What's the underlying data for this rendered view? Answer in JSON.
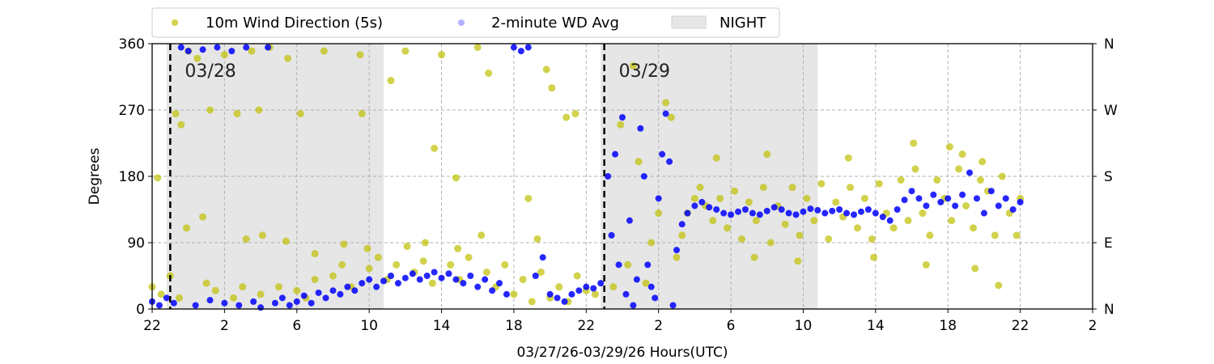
{
  "chart_data": {
    "type": "scatter",
    "xlabel": "03/27/26-03/29/26  Hours(UTC)",
    "ylabel": "Degrees",
    "x_range_hours": [
      22,
      74
    ],
    "ylim": [
      0,
      360
    ],
    "x_ticks": [
      {
        "hour": 22,
        "label": "22"
      },
      {
        "hour": 26,
        "label": "2"
      },
      {
        "hour": 30,
        "label": "6"
      },
      {
        "hour": 34,
        "label": "10"
      },
      {
        "hour": 38,
        "label": "14"
      },
      {
        "hour": 42,
        "label": "18"
      },
      {
        "hour": 46,
        "label": "22"
      },
      {
        "hour": 50,
        "label": "2"
      },
      {
        "hour": 54,
        "label": "6"
      },
      {
        "hour": 58,
        "label": "10"
      },
      {
        "hour": 62,
        "label": "14"
      },
      {
        "hour": 66,
        "label": "18"
      },
      {
        "hour": 70,
        "label": "22"
      },
      {
        "hour": 74,
        "label": "2"
      }
    ],
    "y_ticks": [
      0,
      90,
      180,
      270,
      360
    ],
    "y_ticks_right": [
      {
        "value": 0,
        "label": "N"
      },
      {
        "value": 90,
        "label": "E"
      },
      {
        "value": 180,
        "label": "S"
      },
      {
        "value": 270,
        "label": "W"
      },
      {
        "value": 360,
        "label": "N"
      }
    ],
    "grid": true,
    "legend": {
      "placement": "top-left-outside",
      "entries": [
        {
          "label": "10m Wind Direction (5s)",
          "kind": "point",
          "color": "#bfbf00"
        },
        {
          "label": "2-minute WD Avg",
          "kind": "point",
          "color": "#0000ff"
        },
        {
          "label": "NIGHT",
          "kind": "patch",
          "color": "#e6e6e6"
        }
      ]
    },
    "night_spans": [
      {
        "start": 22.8,
        "end": 34.8
      },
      {
        "start": 46.8,
        "end": 58.8
      }
    ],
    "day_markers": [
      {
        "hour": 23.0,
        "label": "03/28"
      },
      {
        "hour": 47.0,
        "label": "03/29"
      }
    ],
    "series": [
      {
        "name": "10m Wind Direction (5s)",
        "color": "#bfbf00",
        "points": [
          [
            22.0,
            30
          ],
          [
            22.5,
            20
          ],
          [
            23.0,
            45
          ],
          [
            23.5,
            15
          ],
          [
            24.0,
            350
          ],
          [
            24.5,
            340
          ],
          [
            25.0,
            35
          ],
          [
            25.5,
            25
          ],
          [
            26.0,
            345
          ],
          [
            26.5,
            15
          ],
          [
            27.0,
            30
          ],
          [
            27.5,
            350
          ],
          [
            28.0,
            20
          ],
          [
            28.5,
            355
          ],
          [
            29.0,
            30
          ],
          [
            29.5,
            340
          ],
          [
            30.0,
            25
          ],
          [
            30.5,
            15
          ],
          [
            31.0,
            40
          ],
          [
            31.5,
            350
          ],
          [
            32.0,
            45
          ],
          [
            32.5,
            60
          ],
          [
            33.0,
            30
          ],
          [
            33.5,
            345
          ],
          [
            34.0,
            55
          ],
          [
            34.5,
            70
          ],
          [
            35.0,
            40
          ],
          [
            35.5,
            60
          ],
          [
            36.0,
            350
          ],
          [
            36.5,
            50
          ],
          [
            37.0,
            65
          ],
          [
            37.5,
            35
          ],
          [
            38.0,
            345
          ],
          [
            38.5,
            60
          ],
          [
            39.0,
            40
          ],
          [
            39.5,
            70
          ],
          [
            40.0,
            355
          ],
          [
            40.5,
            50
          ],
          [
            41.0,
            30
          ],
          [
            41.5,
            60
          ],
          [
            42.0,
            20
          ],
          [
            42.5,
            40
          ],
          [
            43.0,
            10
          ],
          [
            43.5,
            50
          ],
          [
            44.0,
            15
          ],
          [
            44.5,
            30
          ],
          [
            45.0,
            10
          ],
          [
            45.5,
            45
          ],
          [
            46.0,
            25
          ],
          [
            46.5,
            20
          ],
          [
            23.3,
            265
          ],
          [
            23.6,
            250
          ],
          [
            25.2,
            270
          ],
          [
            26.7,
            265
          ],
          [
            27.9,
            270
          ],
          [
            30.2,
            265
          ],
          [
            33.6,
            265
          ],
          [
            37.6,
            218
          ],
          [
            38.8,
            178
          ],
          [
            35.2,
            310
          ],
          [
            40.6,
            320
          ],
          [
            43.8,
            325
          ],
          [
            44.9,
            260
          ],
          [
            45.4,
            265
          ],
          [
            44.1,
            300
          ],
          [
            22.3,
            178
          ],
          [
            23.9,
            110
          ],
          [
            24.8,
            125
          ],
          [
            27.2,
            95
          ],
          [
            28.1,
            100
          ],
          [
            29.4,
            92
          ],
          [
            31.0,
            75
          ],
          [
            32.6,
            88
          ],
          [
            33.9,
            82
          ],
          [
            36.1,
            85
          ],
          [
            37.1,
            90
          ],
          [
            38.9,
            82
          ],
          [
            40.2,
            100
          ],
          [
            42.8,
            150
          ],
          [
            43.3,
            95
          ],
          [
            47.5,
            30
          ],
          [
            47.9,
            250
          ],
          [
            48.3,
            60
          ],
          [
            48.6,
            330
          ],
          [
            48.9,
            200
          ],
          [
            49.3,
            35
          ],
          [
            49.6,
            90
          ],
          [
            50.0,
            130
          ],
          [
            50.4,
            280
          ],
          [
            50.7,
            260
          ],
          [
            51.0,
            70
          ],
          [
            51.3,
            100
          ],
          [
            51.6,
            130
          ],
          [
            52.0,
            150
          ],
          [
            52.3,
            165
          ],
          [
            52.6,
            140
          ],
          [
            53.0,
            120
          ],
          [
            53.4,
            150
          ],
          [
            53.8,
            110
          ],
          [
            54.2,
            160
          ],
          [
            54.6,
            95
          ],
          [
            55.0,
            145
          ],
          [
            55.4,
            120
          ],
          [
            55.8,
            165
          ],
          [
            56.2,
            90
          ],
          [
            56.6,
            140
          ],
          [
            57.0,
            115
          ],
          [
            57.4,
            165
          ],
          [
            57.8,
            100
          ],
          [
            58.2,
            150
          ],
          [
            58.6,
            120
          ],
          [
            59.0,
            170
          ],
          [
            59.4,
            95
          ],
          [
            59.8,
            145
          ],
          [
            60.2,
            125
          ],
          [
            60.6,
            165
          ],
          [
            61.0,
            110
          ],
          [
            61.4,
            150
          ],
          [
            61.8,
            95
          ],
          [
            62.2,
            170
          ],
          [
            62.6,
            130
          ],
          [
            63.0,
            110
          ],
          [
            63.4,
            175
          ],
          [
            63.8,
            120
          ],
          [
            64.2,
            190
          ],
          [
            64.6,
            130
          ],
          [
            65.0,
            100
          ],
          [
            65.4,
            175
          ],
          [
            65.8,
            150
          ],
          [
            66.2,
            120
          ],
          [
            66.6,
            190
          ],
          [
            67.0,
            140
          ],
          [
            67.4,
            110
          ],
          [
            67.8,
            175
          ],
          [
            68.2,
            160
          ],
          [
            68.6,
            100
          ],
          [
            69.0,
            180
          ],
          [
            69.4,
            130
          ],
          [
            69.8,
            100
          ],
          [
            70.0,
            150
          ],
          [
            55.3,
            70
          ],
          [
            57.7,
            65
          ],
          [
            60.5,
            205
          ],
          [
            61.9,
            70
          ],
          [
            64.8,
            60
          ],
          [
            66.8,
            210
          ],
          [
            67.5,
            55
          ],
          [
            68.8,
            32
          ],
          [
            53.2,
            205
          ],
          [
            56.0,
            210
          ],
          [
            64.1,
            225
          ],
          [
            66.1,
            220
          ],
          [
            67.9,
            200
          ]
        ]
      },
      {
        "name": "2-minute WD Avg",
        "color": "#0000ff",
        "points": [
          [
            22.0,
            10
          ],
          [
            22.4,
            5
          ],
          [
            22.8,
            15
          ],
          [
            23.2,
            8
          ],
          [
            23.6,
            355
          ],
          [
            24.0,
            350
          ],
          [
            24.4,
            5
          ],
          [
            24.8,
            352
          ],
          [
            25.2,
            12
          ],
          [
            25.6,
            355
          ],
          [
            26.0,
            8
          ],
          [
            26.4,
            350
          ],
          [
            26.8,
            5
          ],
          [
            27.2,
            355
          ],
          [
            27.6,
            10
          ],
          [
            28.0,
            2
          ],
          [
            28.4,
            355
          ],
          [
            28.8,
            8
          ],
          [
            29.2,
            15
          ],
          [
            29.6,
            5
          ],
          [
            30.0,
            10
          ],
          [
            30.4,
            18
          ],
          [
            30.8,
            8
          ],
          [
            31.2,
            22
          ],
          [
            31.6,
            15
          ],
          [
            32.0,
            25
          ],
          [
            32.4,
            20
          ],
          [
            32.8,
            30
          ],
          [
            33.2,
            25
          ],
          [
            33.6,
            35
          ],
          [
            34.0,
            40
          ],
          [
            34.4,
            30
          ],
          [
            34.8,
            38
          ],
          [
            35.2,
            45
          ],
          [
            35.6,
            35
          ],
          [
            36.0,
            42
          ],
          [
            36.4,
            48
          ],
          [
            36.8,
            40
          ],
          [
            37.2,
            45
          ],
          [
            37.6,
            50
          ],
          [
            38.0,
            42
          ],
          [
            38.4,
            48
          ],
          [
            38.8,
            40
          ],
          [
            39.2,
            35
          ],
          [
            39.6,
            45
          ],
          [
            40.0,
            30
          ],
          [
            40.4,
            40
          ],
          [
            40.8,
            25
          ],
          [
            41.2,
            35
          ],
          [
            41.6,
            20
          ],
          [
            42.0,
            355
          ],
          [
            42.4,
            350
          ],
          [
            42.8,
            355
          ],
          [
            43.2,
            45
          ],
          [
            43.6,
            70
          ],
          [
            44.0,
            20
          ],
          [
            44.4,
            15
          ],
          [
            44.8,
            10
          ],
          [
            45.2,
            20
          ],
          [
            45.6,
            25
          ],
          [
            46.0,
            30
          ],
          [
            46.4,
            28
          ],
          [
            46.8,
            35
          ],
          [
            47.2,
            180
          ],
          [
            47.4,
            100
          ],
          [
            47.6,
            210
          ],
          [
            47.8,
            60
          ],
          [
            48.0,
            260
          ],
          [
            48.2,
            20
          ],
          [
            48.4,
            120
          ],
          [
            48.6,
            5
          ],
          [
            48.8,
            40
          ],
          [
            49.0,
            245
          ],
          [
            49.2,
            180
          ],
          [
            49.4,
            60
          ],
          [
            49.6,
            30
          ],
          [
            49.8,
            15
          ],
          [
            50.0,
            150
          ],
          [
            50.2,
            210
          ],
          [
            50.4,
            265
          ],
          [
            50.6,
            200
          ],
          [
            50.8,
            5
          ],
          [
            51.0,
            80
          ],
          [
            51.3,
            115
          ],
          [
            51.6,
            130
          ],
          [
            52.0,
            140
          ],
          [
            52.4,
            145
          ],
          [
            52.8,
            138
          ],
          [
            53.2,
            135
          ],
          [
            53.6,
            130
          ],
          [
            54.0,
            128
          ],
          [
            54.4,
            132
          ],
          [
            54.8,
            135
          ],
          [
            55.2,
            130
          ],
          [
            55.6,
            128
          ],
          [
            56.0,
            133
          ],
          [
            56.4,
            138
          ],
          [
            56.8,
            135
          ],
          [
            57.2,
            130
          ],
          [
            57.6,
            128
          ],
          [
            58.0,
            132
          ],
          [
            58.4,
            136
          ],
          [
            58.8,
            134
          ],
          [
            59.2,
            130
          ],
          [
            59.6,
            133
          ],
          [
            60.0,
            135
          ],
          [
            60.4,
            130
          ],
          [
            60.8,
            128
          ],
          [
            61.2,
            132
          ],
          [
            61.6,
            135
          ],
          [
            62.0,
            130
          ],
          [
            62.4,
            125
          ],
          [
            62.8,
            120
          ],
          [
            63.2,
            135
          ],
          [
            63.6,
            148
          ],
          [
            64.0,
            160
          ],
          [
            64.4,
            150
          ],
          [
            64.8,
            140
          ],
          [
            65.2,
            155
          ],
          [
            65.6,
            145
          ],
          [
            66.0,
            150
          ],
          [
            66.4,
            140
          ],
          [
            66.8,
            155
          ],
          [
            67.2,
            185
          ],
          [
            67.6,
            150
          ],
          [
            68.0,
            130
          ],
          [
            68.4,
            160
          ],
          [
            68.8,
            140
          ],
          [
            69.2,
            150
          ],
          [
            69.6,
            135
          ],
          [
            70.0,
            145
          ]
        ]
      }
    ]
  }
}
